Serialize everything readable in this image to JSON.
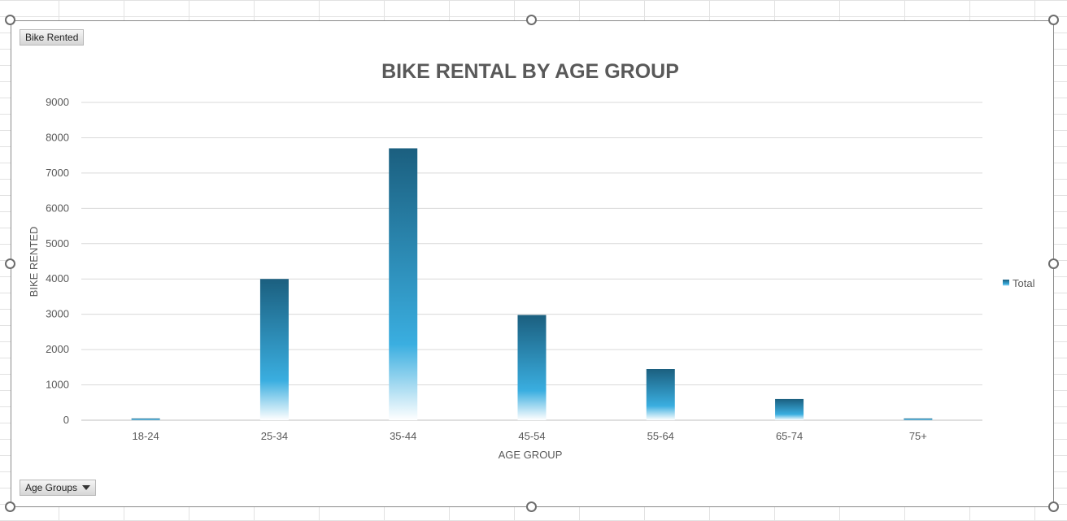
{
  "field_buttons": {
    "value_field": "Bike  Rented",
    "axis_field": "Age Groups"
  },
  "colors": {
    "bar_top": "#1b5f7f",
    "bar_mid": "#3aaee0",
    "bar_bottom": "#ffffff",
    "gridline": "#d9d9d9",
    "title": "#595959",
    "axis_text": "#595959"
  },
  "chart_data": {
    "type": "bar",
    "title": "BIKE RENTAL BY AGE GROUP",
    "xlabel": "AGE GROUP",
    "ylabel": "BIKE RENTED",
    "ylim": [
      0,
      9000
    ],
    "yticks": [
      0,
      1000,
      2000,
      3000,
      4000,
      5000,
      6000,
      7000,
      8000,
      9000
    ],
    "categories": [
      "18-24",
      "25-34",
      "35-44",
      "45-54",
      "55-64",
      "65-74",
      "75+"
    ],
    "series": [
      {
        "name": "Total",
        "values": [
          50,
          4000,
          7700,
          2980,
          1450,
          600,
          50
        ]
      }
    ],
    "legend": {
      "position": "right",
      "entries": [
        "Total"
      ]
    },
    "grid": true
  }
}
